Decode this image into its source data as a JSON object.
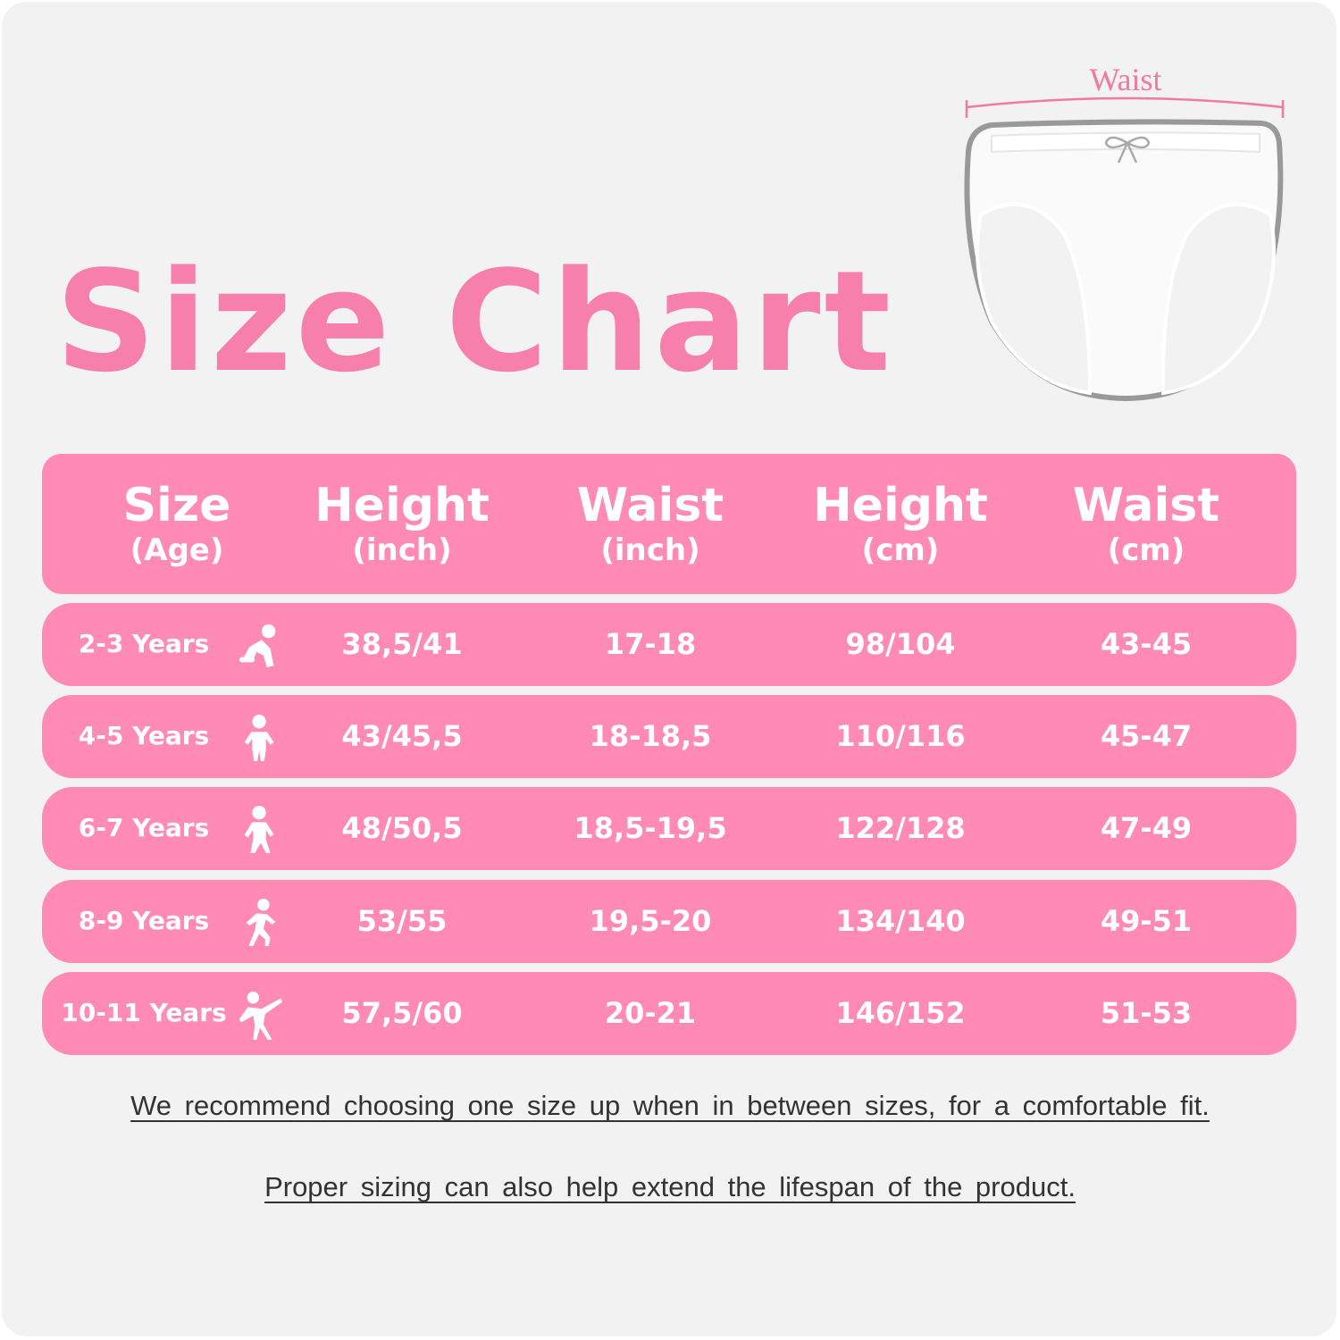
{
  "title": "Size Chart",
  "diagram": {
    "label": "Waist"
  },
  "colors": {
    "accent": "#ff8ab4",
    "title": "#f77fac",
    "background": "#f2f2f2"
  },
  "table": {
    "headers": [
      {
        "main": "Size",
        "sub": "(Age)"
      },
      {
        "main": "Height",
        "sub": "(inch)"
      },
      {
        "main": "Waist",
        "sub": "(inch)"
      },
      {
        "main": "Height",
        "sub": "(cm)"
      },
      {
        "main": "Waist",
        "sub": "(cm)"
      }
    ],
    "rows": [
      {
        "age": "2-3 Years",
        "icon": "crawling-baby-icon",
        "height_in": "38,5/41",
        "waist_in": "17-18",
        "height_cm": "98/104",
        "waist_cm": "43-45"
      },
      {
        "age": "4-5 Years",
        "icon": "standing-child-icon",
        "height_in": "43/45,5",
        "waist_in": "18-18,5",
        "height_cm": "110/116",
        "waist_cm": "45-47"
      },
      {
        "age": "6-7 Years",
        "icon": "walking-child-icon",
        "height_in": "48/50,5",
        "waist_in": "18,5-19,5",
        "height_cm": "122/128",
        "waist_cm": "47-49"
      },
      {
        "age": "8-9 Years",
        "icon": "running-child-icon",
        "height_in": "53/55",
        "waist_in": "19,5-20",
        "height_cm": "134/140",
        "waist_cm": "49-51"
      },
      {
        "age": "10-11 Years",
        "icon": "dancing-child-icon",
        "height_in": "57,5/60",
        "waist_in": "20-21",
        "height_cm": "146/152",
        "waist_cm": "51-53"
      }
    ]
  },
  "notes": [
    "We recommend choosing one size up when in between sizes, for a comfortable fit.",
    "Proper sizing can also help extend the lifespan of the product."
  ]
}
